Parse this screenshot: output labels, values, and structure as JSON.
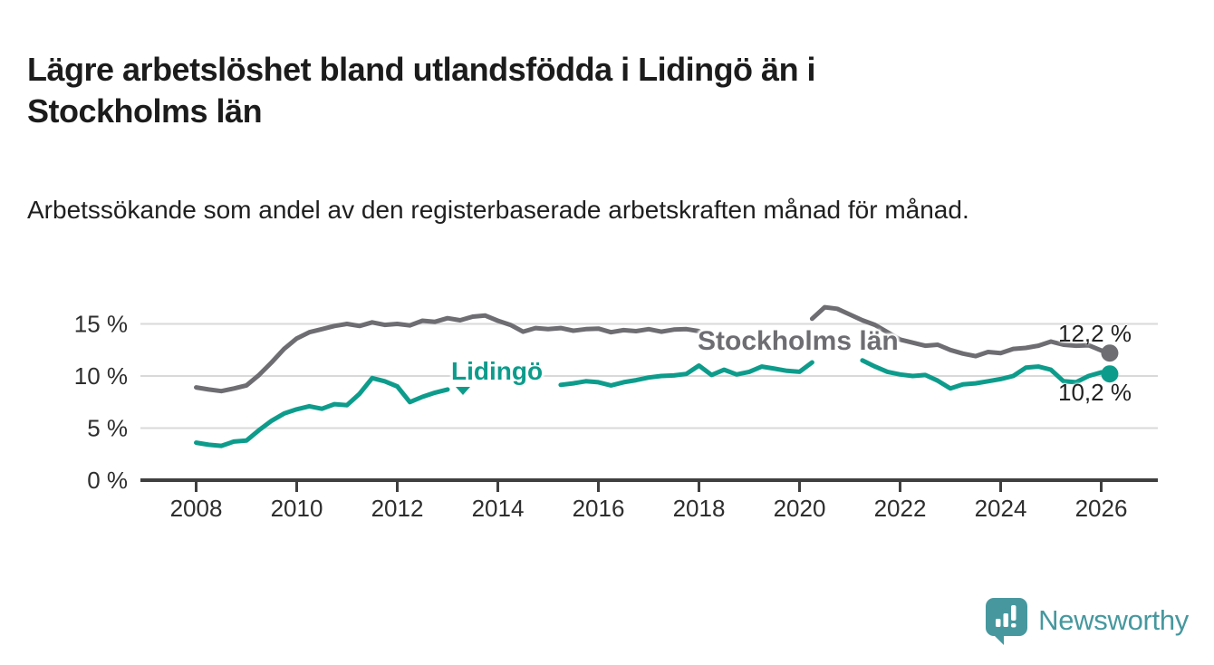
{
  "header": {
    "title": "Lägre arbetslöshet bland utlandsfödda i Lidingö än i Stockholms län",
    "subtitle": "Arbetssökande som andel av den registerbaserade arbetskraften månad för månad."
  },
  "colors": {
    "stockholm_line": "#6d6d72",
    "lidingo_line": "#0d9c8c",
    "grid": "#d9d9d9",
    "axis": "#3f3f3f",
    "tick_text": "#2e2e2e",
    "title_text": "#1c1c1c",
    "logo_teal": "#46989e"
  },
  "branding": {
    "logo_text": "Newsworthy",
    "logo_icon": "bar-chart-speech-bubble"
  },
  "chart_data": {
    "type": "line",
    "title": "Lägre arbetslöshet bland utlandsfödda i Lidingö än i Stockholms län",
    "subtitle": "Arbetssökande som andel av den registerbaserade arbetskraften månad för månad.",
    "xlabel": "",
    "ylabel": "",
    "x_unit": "year (monthly series, shown quarterly)",
    "xlim": [
      2006.9,
      2027.1
    ],
    "ylim": [
      0,
      17.5
    ],
    "grid": "horizontal",
    "legend_position": "inline-labels",
    "x_ticks": [
      2008,
      2010,
      2012,
      2014,
      2016,
      2018,
      2020,
      2022,
      2024,
      2026
    ],
    "y_ticks": [
      {
        "value": 0,
        "label": "0 %"
      },
      {
        "value": 5,
        "label": "5 %"
      },
      {
        "value": 10,
        "label": "10 %"
      },
      {
        "value": 15,
        "label": "15 %"
      }
    ],
    "x": [
      2008,
      2008.25,
      2008.5,
      2008.75,
      2009,
      2009.25,
      2009.5,
      2009.75,
      2010,
      2010.25,
      2010.5,
      2010.75,
      2011,
      2011.25,
      2011.5,
      2011.75,
      2012,
      2012.25,
      2012.5,
      2012.75,
      2013,
      2013.25,
      2013.5,
      2013.75,
      2014,
      2014.25,
      2014.5,
      2014.75,
      2015,
      2015.25,
      2015.5,
      2015.75,
      2016,
      2016.25,
      2016.5,
      2016.75,
      2017,
      2017.25,
      2017.5,
      2017.75,
      2018,
      2018.25,
      2018.5,
      2018.75,
      2019,
      2019.25,
      2019.5,
      2019.75,
      2020,
      2020.25,
      2020.5,
      2020.75,
      2021,
      2021.25,
      2021.5,
      2021.75,
      2022,
      2022.25,
      2022.5,
      2022.75,
      2023,
      2023.25,
      2023.5,
      2023.75,
      2024,
      2024.25,
      2024.5,
      2024.75,
      2025,
      2025.25,
      2025.5,
      2025.75,
      2026,
      2026.17
    ],
    "series": [
      {
        "name": "Stockholms län",
        "color": "#6d6d72",
        "end_label": "12,2 %",
        "end_value": 12.2,
        "label_gaps": [
          [
            2018.1,
            2020.2
          ]
        ],
        "values": [
          8.9,
          8.7,
          8.55,
          8.8,
          9.1,
          10.1,
          11.3,
          12.6,
          13.6,
          14.2,
          14.5,
          14.8,
          15.0,
          14.8,
          15.15,
          14.9,
          15.0,
          14.85,
          15.3,
          15.2,
          15.55,
          15.35,
          15.7,
          15.8,
          15.3,
          14.9,
          14.25,
          14.6,
          14.5,
          14.6,
          14.35,
          14.5,
          14.55,
          14.2,
          14.4,
          14.3,
          14.5,
          14.25,
          14.45,
          14.5,
          14.3,
          14.1,
          14.0,
          13.9,
          13.8,
          13.75,
          13.7,
          13.8,
          14.0,
          15.5,
          16.6,
          16.45,
          15.9,
          15.35,
          14.9,
          14.2,
          13.5,
          13.2,
          12.9,
          13.0,
          12.5,
          12.15,
          11.9,
          12.3,
          12.2,
          12.6,
          12.7,
          12.9,
          13.3,
          13.0,
          12.9,
          12.95,
          12.45,
          12.2
        ]
      },
      {
        "name": "Lidingö",
        "color": "#0d9c8c",
        "end_label": "10,2 %",
        "end_value": 10.2,
        "label_gaps": [
          [
            2013.05,
            2015.1
          ],
          [
            2020.45,
            2021.05
          ]
        ],
        "values": [
          3.6,
          3.4,
          3.3,
          3.7,
          3.8,
          4.8,
          5.7,
          6.4,
          6.8,
          7.1,
          6.85,
          7.3,
          7.2,
          8.3,
          9.8,
          9.5,
          9.0,
          7.5,
          8.0,
          8.4,
          8.7,
          8.9,
          9.1,
          9.2,
          9.1,
          9.3,
          9.2,
          9.1,
          9.0,
          9.15,
          9.3,
          9.5,
          9.4,
          9.1,
          9.4,
          9.6,
          9.85,
          10.0,
          10.05,
          10.2,
          11.0,
          10.1,
          10.6,
          10.15,
          10.4,
          10.9,
          10.7,
          10.5,
          10.4,
          11.3,
          12.4,
          12.65,
          12.2,
          11.5,
          10.9,
          10.4,
          10.15,
          10.0,
          10.1,
          9.55,
          8.8,
          9.2,
          9.3,
          9.5,
          9.7,
          10.0,
          10.8,
          10.9,
          10.6,
          9.5,
          9.4,
          10.0,
          10.35,
          10.2
        ]
      }
    ]
  }
}
